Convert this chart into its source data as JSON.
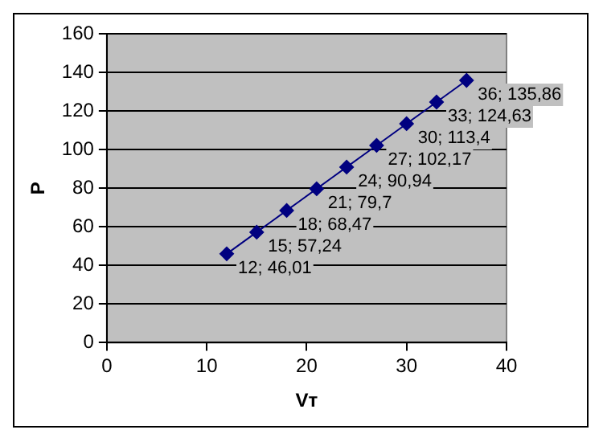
{
  "chart_data": {
    "type": "line",
    "xlabel": "Vт",
    "ylabel": "P",
    "x": [
      12,
      15,
      18,
      21,
      24,
      27,
      30,
      33,
      36
    ],
    "series": [
      {
        "color": "#000080",
        "values": [
          46.01,
          57.24,
          68.47,
          79.7,
          90.94,
          102.17,
          113.4,
          124.63,
          135.86
        ],
        "value_labels": [
          "12; 46,01",
          "15; 57,24",
          "18; 68,47",
          "21; 79,7",
          "24; 90,94",
          "27; 102,17",
          "30; 113,4",
          "33; 124,63",
          "36; 135,86"
        ]
      }
    ],
    "xlim": [
      0,
      40
    ],
    "xticks": [
      0,
      10,
      20,
      30,
      40
    ],
    "ylim": [
      0,
      160
    ],
    "yticks": [
      0,
      20,
      40,
      60,
      80,
      100,
      120,
      140,
      160
    ],
    "grid": "y",
    "marker": "diamond",
    "line_style": "solid",
    "legend": false
  }
}
